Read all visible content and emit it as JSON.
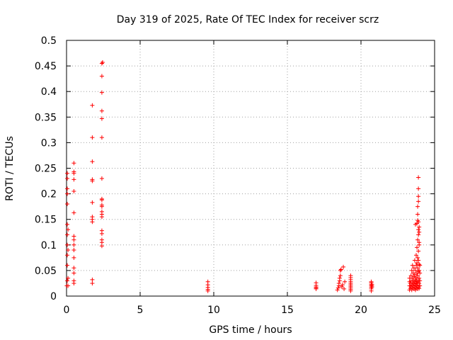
{
  "chart_data": {
    "type": "scatter",
    "title": "Day 319 of 2025, Rate Of TEC Index for receiver scrz",
    "xlabel": "GPS time / hours",
    "ylabel": "ROTI / TECUs",
    "xlim": [
      0,
      25
    ],
    "ylim": [
      0,
      0.5
    ],
    "x_ticks": [
      "0",
      "5",
      "10",
      "15",
      "20",
      "25"
    ],
    "y_ticks": [
      "0",
      "0.05",
      "0.1",
      "0.15",
      "0.2",
      "0.25",
      "0.3",
      "0.35",
      "0.4",
      "0.45",
      "0.5"
    ],
    "grid": true,
    "marker": "plus",
    "color": "#ff0000",
    "series": [
      {
        "points": [
          [
            0.02,
            0.02
          ],
          [
            0.05,
            0.03
          ],
          [
            0.05,
            0.06
          ],
          [
            0.05,
            0.08
          ],
          [
            0.05,
            0.1
          ],
          [
            0.05,
            0.12
          ],
          [
            0.05,
            0.14
          ],
          [
            0.05,
            0.18
          ],
          [
            0.05,
            0.2
          ],
          [
            0.05,
            0.21
          ],
          [
            0.05,
            0.23
          ],
          [
            0.05,
            0.24
          ],
          [
            0.1,
            0.02
          ],
          [
            0.1,
            0.035
          ],
          [
            0.1,
            0.09
          ],
          [
            0.1,
            0.13
          ],
          [
            0.5,
            0.025
          ],
          [
            0.5,
            0.03
          ],
          [
            0.5,
            0.045
          ],
          [
            0.5,
            0.055
          ],
          [
            0.5,
            0.075
          ],
          [
            0.5,
            0.09
          ],
          [
            0.5,
            0.1
          ],
          [
            0.5,
            0.11
          ],
          [
            0.5,
            0.117
          ],
          [
            0.5,
            0.163
          ],
          [
            0.5,
            0.205
          ],
          [
            0.5,
            0.228
          ],
          [
            0.5,
            0.24
          ],
          [
            0.5,
            0.243
          ],
          [
            0.5,
            0.26
          ],
          [
            1.75,
            0.025
          ],
          [
            1.75,
            0.032
          ],
          [
            1.75,
            0.145
          ],
          [
            1.75,
            0.15
          ],
          [
            1.75,
            0.155
          ],
          [
            1.75,
            0.183
          ],
          [
            1.75,
            0.225
          ],
          [
            1.75,
            0.228
          ],
          [
            1.75,
            0.263
          ],
          [
            1.75,
            0.31
          ],
          [
            1.75,
            0.373
          ],
          [
            2.4,
            0.098
          ],
          [
            2.4,
            0.105
          ],
          [
            2.4,
            0.11
          ],
          [
            2.4,
            0.122
          ],
          [
            2.4,
            0.128
          ],
          [
            2.4,
            0.155
          ],
          [
            2.4,
            0.16
          ],
          [
            2.4,
            0.165
          ],
          [
            2.4,
            0.175
          ],
          [
            2.4,
            0.178
          ],
          [
            2.4,
            0.188
          ],
          [
            2.4,
            0.19
          ],
          [
            2.4,
            0.23
          ],
          [
            2.4,
            0.31
          ],
          [
            2.4,
            0.347
          ],
          [
            2.4,
            0.362
          ],
          [
            2.4,
            0.398
          ],
          [
            2.4,
            0.43
          ],
          [
            2.4,
            0.455
          ],
          [
            2.45,
            0.457
          ],
          [
            9.6,
            0.01
          ],
          [
            9.6,
            0.013
          ],
          [
            9.6,
            0.017
          ],
          [
            9.6,
            0.022
          ],
          [
            9.6,
            0.028
          ],
          [
            16.95,
            0.014
          ],
          [
            16.95,
            0.016
          ],
          [
            16.95,
            0.018
          ],
          [
            16.95,
            0.021
          ],
          [
            16.95,
            0.026
          ],
          [
            18.4,
            0.012
          ],
          [
            18.45,
            0.016
          ],
          [
            18.5,
            0.02
          ],
          [
            18.5,
            0.025
          ],
          [
            18.55,
            0.03
          ],
          [
            18.55,
            0.035
          ],
          [
            18.6,
            0.04
          ],
          [
            18.6,
            0.05
          ],
          [
            18.65,
            0.052
          ],
          [
            18.7,
            0.018
          ],
          [
            18.75,
            0.022
          ],
          [
            18.8,
            0.057
          ],
          [
            18.85,
            0.014
          ],
          [
            18.9,
            0.028
          ],
          [
            19.3,
            0.01
          ],
          [
            19.3,
            0.013
          ],
          [
            19.3,
            0.016
          ],
          [
            19.3,
            0.019
          ],
          [
            19.3,
            0.022
          ],
          [
            19.3,
            0.025
          ],
          [
            19.3,
            0.028
          ],
          [
            19.3,
            0.032
          ],
          [
            19.3,
            0.036
          ],
          [
            19.3,
            0.04
          ],
          [
            20.7,
            0.01
          ],
          [
            20.7,
            0.014
          ],
          [
            20.7,
            0.017
          ],
          [
            20.7,
            0.02
          ],
          [
            20.7,
            0.023
          ],
          [
            20.7,
            0.026
          ],
          [
            20.7,
            0.028
          ],
          [
            20.75,
            0.018
          ],
          [
            20.75,
            0.022
          ],
          [
            23.3,
            0.012
          ],
          [
            23.3,
            0.02
          ],
          [
            23.3,
            0.028
          ],
          [
            23.3,
            0.035
          ],
          [
            23.35,
            0.015
          ],
          [
            23.35,
            0.025
          ],
          [
            23.4,
            0.018
          ],
          [
            23.4,
            0.03
          ],
          [
            23.4,
            0.04
          ],
          [
            23.45,
            0.012
          ],
          [
            23.45,
            0.022
          ],
          [
            23.45,
            0.05
          ],
          [
            23.5,
            0.016
          ],
          [
            23.5,
            0.026
          ],
          [
            23.5,
            0.035
          ],
          [
            23.5,
            0.06
          ],
          [
            23.55,
            0.02
          ],
          [
            23.55,
            0.03
          ],
          [
            23.55,
            0.045
          ],
          [
            23.6,
            0.014
          ],
          [
            23.6,
            0.024
          ],
          [
            23.6,
            0.038
          ],
          [
            23.6,
            0.055
          ],
          [
            23.65,
            0.018
          ],
          [
            23.65,
            0.028
          ],
          [
            23.65,
            0.042
          ],
          [
            23.65,
            0.07
          ],
          [
            23.7,
            0.012
          ],
          [
            23.7,
            0.022
          ],
          [
            23.7,
            0.032
          ],
          [
            23.7,
            0.05
          ],
          [
            23.7,
            0.14
          ],
          [
            23.75,
            0.016
          ],
          [
            23.75,
            0.026
          ],
          [
            23.75,
            0.036
          ],
          [
            23.75,
            0.06
          ],
          [
            23.75,
            0.08
          ],
          [
            23.8,
            0.02
          ],
          [
            23.8,
            0.03
          ],
          [
            23.8,
            0.045
          ],
          [
            23.8,
            0.065
          ],
          [
            23.8,
            0.095
          ],
          [
            23.8,
            0.142
          ],
          [
            23.85,
            0.014
          ],
          [
            23.85,
            0.025
          ],
          [
            23.85,
            0.04
          ],
          [
            23.85,
            0.055
          ],
          [
            23.85,
            0.075
          ],
          [
            23.85,
            0.11
          ],
          [
            23.85,
            0.148
          ],
          [
            23.85,
            0.16
          ],
          [
            23.85,
            0.175
          ],
          [
            23.9,
            0.018
          ],
          [
            23.9,
            0.03
          ],
          [
            23.9,
            0.048
          ],
          [
            23.9,
            0.07
          ],
          [
            23.9,
            0.088
          ],
          [
            23.9,
            0.12
          ],
          [
            23.9,
            0.13
          ],
          [
            23.9,
            0.145
          ],
          [
            23.9,
            0.185
          ],
          [
            23.9,
            0.195
          ],
          [
            23.9,
            0.21
          ],
          [
            23.9,
            0.232
          ],
          [
            23.95,
            0.015
          ],
          [
            23.95,
            0.025
          ],
          [
            23.95,
            0.035
          ],
          [
            23.95,
            0.05
          ],
          [
            23.95,
            0.062
          ],
          [
            23.95,
            0.1
          ],
          [
            23.95,
            0.105
          ],
          [
            23.95,
            0.125
          ],
          [
            23.95,
            0.135
          ],
          [
            24.0,
            0.02
          ],
          [
            24.0,
            0.03
          ],
          [
            24.0,
            0.045
          ],
          [
            24.0,
            0.06
          ]
        ]
      }
    ]
  }
}
